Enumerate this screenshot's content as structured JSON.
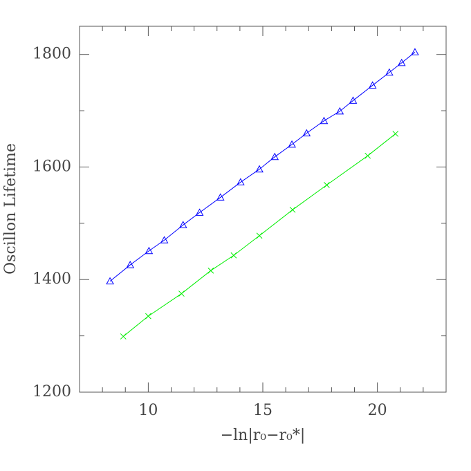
{
  "chart_data": {
    "type": "scatter",
    "xlabel": "−ln|r₀−r₀*|",
    "ylabel": "Oscillon Lifetime",
    "xlim": [
      7,
      23
    ],
    "ylim": [
      1200,
      1850
    ],
    "xticks": [
      10,
      15,
      20
    ],
    "yticks": [
      1200,
      1400,
      1600,
      1800
    ],
    "xminorticks": [
      8,
      9,
      11,
      12,
      13,
      14,
      16,
      17,
      18,
      19,
      21,
      22
    ],
    "yminorticks": [
      1300,
      1500,
      1700
    ],
    "series": [
      {
        "color": "#0000ff",
        "marker": "triangle",
        "line": true,
        "x": [
          8.33,
          9.21,
          10.03,
          10.7,
          11.52,
          12.24,
          13.15,
          14.03,
          14.85,
          15.52,
          16.27,
          16.91,
          17.67,
          18.36,
          18.94,
          19.79,
          20.52,
          21.06,
          21.64
        ],
        "values": [
          1397,
          1426,
          1451,
          1470,
          1497,
          1519,
          1546,
          1573,
          1596,
          1618,
          1640,
          1660,
          1682,
          1699,
          1718,
          1745,
          1768,
          1785,
          1804
        ]
      },
      {
        "color": "#00ee00",
        "marker": "cross",
        "line": true,
        "x": [
          8.91,
          10,
          11.45,
          12.73,
          13.73,
          14.85,
          16.3,
          17.79,
          19.58,
          20.79
        ],
        "values": [
          1299,
          1335,
          1375,
          1416,
          1443,
          1478,
          1524,
          1568,
          1620,
          1659
        ]
      }
    ]
  }
}
